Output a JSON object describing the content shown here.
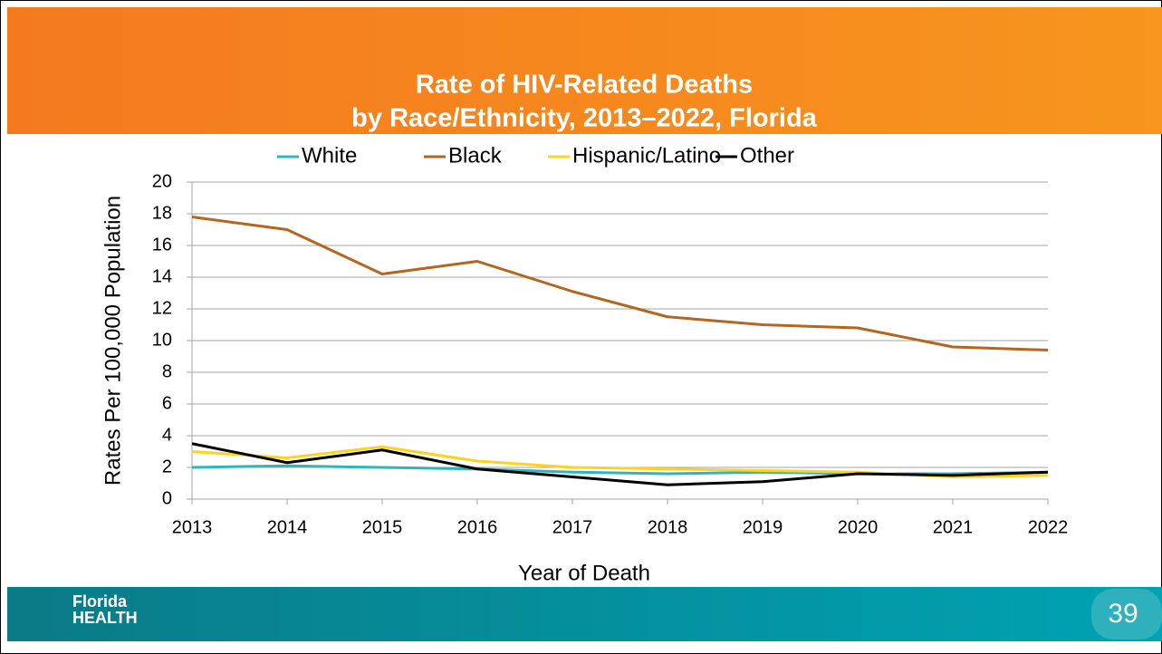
{
  "chart_data": {
    "type": "line",
    "title": [
      "Rate of HIV-Related Deaths",
      "by Race/Ethnicity, 2013–2022, Florida"
    ],
    "x_label": "Year of Death",
    "y_label": "Rates Per 100,000 Population",
    "categories": [
      "2013",
      "2014",
      "2015",
      "2016",
      "2017",
      "2018",
      "2019",
      "2020",
      "2021",
      "2022"
    ],
    "series": [
      {
        "name": "White",
        "color": "#2fb5c0",
        "values": [
          2.0,
          2.1,
          2.0,
          1.9,
          1.7,
          1.6,
          1.7,
          1.6,
          1.6,
          1.7
        ]
      },
      {
        "name": "Black",
        "color": "#b5651d",
        "values": [
          17.8,
          17.0,
          14.2,
          15.0,
          13.1,
          11.5,
          11.0,
          10.8,
          9.6,
          9.4
        ]
      },
      {
        "name": "Hispanic/Latino",
        "color": "#ffd21f",
        "values": [
          3.0,
          2.6,
          3.3,
          2.4,
          2.0,
          1.9,
          1.8,
          1.7,
          1.4,
          1.5
        ]
      },
      {
        "name": "Other",
        "color": "#000000",
        "values": [
          3.5,
          2.3,
          3.1,
          1.9,
          1.4,
          0.9,
          1.1,
          1.6,
          1.5,
          1.7
        ]
      }
    ],
    "ylim": [
      0,
      20
    ],
    "yticks": [
      0,
      2,
      4,
      6,
      8,
      10,
      12,
      14,
      16,
      18,
      20
    ],
    "grid": true,
    "legend": "top"
  },
  "footer": {
    "logo": [
      "Florida",
      "HEALTH"
    ],
    "page_number": "39"
  }
}
